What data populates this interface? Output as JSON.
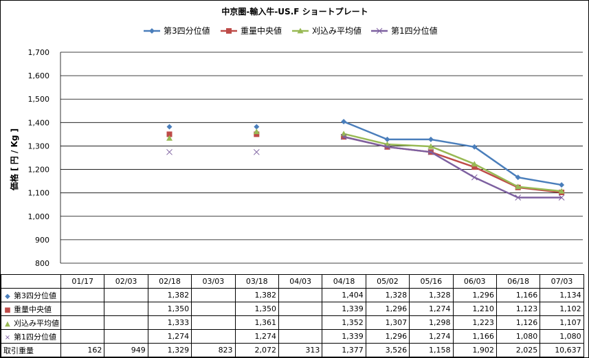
{
  "chart_data": {
    "type": "line",
    "title": "中京圏-輸入牛-US.F ショートプレート",
    "ylabel": "価格 [ 円 / Kg ]",
    "ylim": [
      800,
      1700
    ],
    "yticks": [
      "800",
      "900",
      "1,000",
      "1,100",
      "1,200",
      "1,300",
      "1,400",
      "1,500",
      "1,600",
      "1,700"
    ],
    "categories": [
      "01/17",
      "02/03",
      "02/18",
      "03/03",
      "03/18",
      "04/03",
      "04/18",
      "05/02",
      "05/16",
      "06/03",
      "06/18",
      "07/03"
    ],
    "legend_position": "top",
    "grid": true,
    "series": [
      {
        "name": "第3四分位値",
        "color": "#4a7ebb",
        "marker": "diamond",
        "marker_char": "◆",
        "values": [
          null,
          null,
          1382,
          null,
          1382,
          null,
          1404,
          1328,
          1328,
          1296,
          1166,
          1134
        ],
        "labels": [
          "",
          "",
          "1,382",
          "",
          "1,382",
          "",
          "1,404",
          "1,328",
          "1,328",
          "1,296",
          "1,166",
          "1,134"
        ]
      },
      {
        "name": "重量中央値",
        "color": "#be4b48",
        "marker": "square",
        "marker_char": "■",
        "values": [
          null,
          null,
          1350,
          null,
          1350,
          null,
          1339,
          1296,
          1274,
          1210,
          1123,
          1102
        ],
        "labels": [
          "",
          "",
          "1,350",
          "",
          "1,350",
          "",
          "1,339",
          "1,296",
          "1,274",
          "1,210",
          "1,123",
          "1,102"
        ]
      },
      {
        "name": "刈込み平均値",
        "color": "#98b954",
        "marker": "triangle",
        "marker_char": "▲",
        "values": [
          null,
          null,
          1333,
          null,
          1361,
          null,
          1352,
          1307,
          1298,
          1223,
          1126,
          1107
        ],
        "labels": [
          "",
          "",
          "1,333",
          "",
          "1,361",
          "",
          "1,352",
          "1,307",
          "1,298",
          "1,223",
          "1,126",
          "1,107"
        ]
      },
      {
        "name": "第1四分位値",
        "color": "#7d60a0",
        "marker": "x",
        "marker_char": "×",
        "values": [
          null,
          null,
          1274,
          null,
          1274,
          null,
          1339,
          1296,
          1274,
          1166,
          1080,
          1080
        ],
        "labels": [
          "",
          "",
          "1,274",
          "",
          "1,274",
          "",
          "1,339",
          "1,296",
          "1,274",
          "1,166",
          "1,080",
          "1,080"
        ]
      }
    ],
    "volume": {
      "name": "取引重量",
      "labels": [
        "162",
        "949",
        "1,329",
        "823",
        "2,072",
        "313",
        "1,377",
        "3,526",
        "1,158",
        "1,902",
        "2,025",
        "10,637"
      ]
    }
  }
}
